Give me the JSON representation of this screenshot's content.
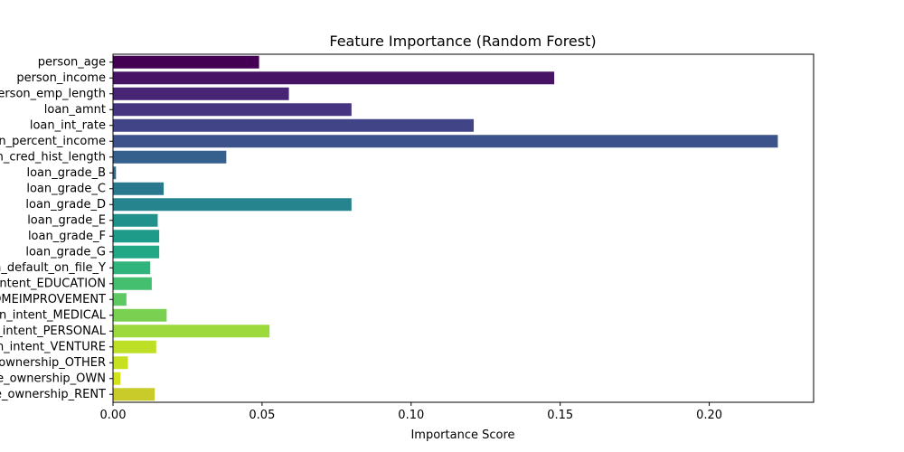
{
  "chart_data": {
    "type": "bar",
    "orientation": "horizontal",
    "title": "Feature Importance (Random Forest)",
    "xlabel": "Importance Score",
    "ylabel": "",
    "xlim": [
      0.0,
      0.235
    ],
    "xticks": [
      "0.00",
      "0.05",
      "0.10",
      "0.15",
      "0.20"
    ],
    "xtick_values": [
      0.0,
      0.05,
      0.1,
      0.15,
      0.2
    ],
    "grid": false,
    "palette": "viridis",
    "categories": [
      "person_age",
      "person_income",
      "person_emp_length",
      "loan_amnt",
      "loan_int_rate",
      "loan_percent_income",
      "cb_person_cred_hist_length",
      "loan_grade_B",
      "loan_grade_C",
      "loan_grade_D",
      "loan_grade_E",
      "loan_grade_F",
      "loan_grade_G",
      "cb_person_default_on_file_Y",
      "loan_intent_EDUCATION",
      "loan_intent_HOMEIMPROVEMENT",
      "loan_intent_MEDICAL",
      "loan_intent_PERSONAL",
      "loan_intent_VENTURE",
      "person_home_ownership_OTHER",
      "person_home_ownership_OWN",
      "person_home_ownership_RENT"
    ],
    "values": [
      0.049,
      0.148,
      0.059,
      0.08,
      0.121,
      0.223,
      0.038,
      0.001,
      0.017,
      0.08,
      0.015,
      0.0155,
      0.0155,
      0.0125,
      0.013,
      0.0045,
      0.018,
      0.0525,
      0.0145,
      0.005,
      0.0025,
      0.014
    ],
    "colors": [
      "#440154",
      "#471365",
      "#482475",
      "#463480",
      "#414487",
      "#3b528b",
      "#355f8d",
      "#2f6c8e",
      "#2a788e",
      "#25848e",
      "#21918c",
      "#1e9c89",
      "#22a884",
      "#2fb47c",
      "#44bf70",
      "#5ec962",
      "#7ad151",
      "#9bd93c",
      "#bddf26",
      "#c7e020",
      "#d2e21b",
      "#c8cb2a"
    ]
  }
}
